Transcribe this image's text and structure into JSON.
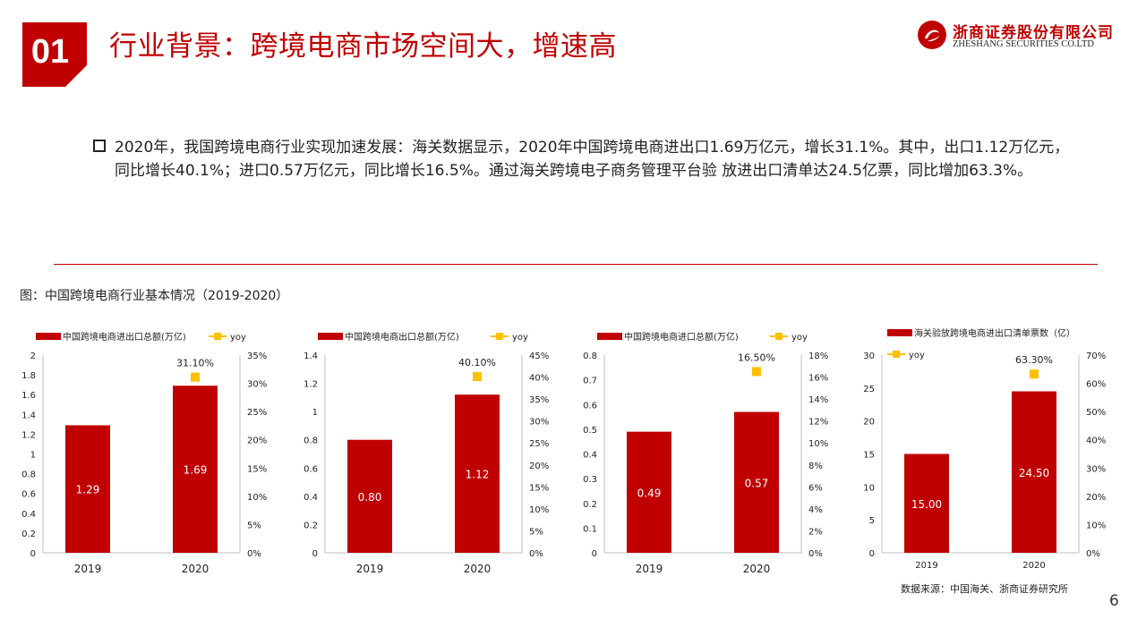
{
  "section_number": "01",
  "title": "行业背景：跨境电商市场空间大，增速高",
  "logo": {
    "name_cn": "浙商证券股份有限公司",
    "name_en": "ZHESHANG SECURITIES CO.LTD",
    "brand_color": "#c00000"
  },
  "bullet_text": "2020年，我国跨境电商行业实现加速发展：海关数据显示，2020年中国跨境电商进出口1.69万亿元，增长31.1%。其中，出口1.12万亿元，同比增长40.1%；进口0.57万亿元，同比增长16.5%。通过海关跨境电子商务管理平台验 放进出口清单达24.5亿票，同比增加63.3%。",
  "figure_caption": "图：中国跨境电商行业基本情况（2019-2020）",
  "source_note": "数据来源：中国海关、浙商证券研究所",
  "page_number": "6",
  "colors": {
    "bar": "#c00000",
    "yoy": "#ffc000",
    "axis": "#bfbfbf"
  },
  "chart_data": [
    {
      "type": "bar",
      "categories": [
        "2019",
        "2020"
      ],
      "series": [
        {
          "name": "中国跨境电商进出口总额(万亿)",
          "values": [
            1.29,
            1.69
          ],
          "labels": [
            "1.29",
            "1.69"
          ]
        },
        {
          "name": "yoy",
          "values": [
            null,
            31.1
          ],
          "labels": [
            "",
            "31.10%"
          ],
          "axis": "right"
        }
      ],
      "y_left": {
        "min": 0,
        "max": 2,
        "ticks": [
          "0",
          "0.2",
          "0.4",
          "0.6",
          "0.8",
          "1",
          "1.2",
          "1.4",
          "1.6",
          "1.8",
          "2"
        ]
      },
      "y_right": {
        "min": 0,
        "max": 35,
        "ticks": [
          "0%",
          "5%",
          "10%",
          "15%",
          "20%",
          "25%",
          "30%",
          "35%"
        ]
      },
      "legend": "top"
    },
    {
      "type": "bar",
      "categories": [
        "2019",
        "2020"
      ],
      "series": [
        {
          "name": "中国跨境电商出口总额(万亿)",
          "values": [
            0.8,
            1.12
          ],
          "labels": [
            "0.80",
            "1.12"
          ]
        },
        {
          "name": "yoy",
          "values": [
            null,
            40.1
          ],
          "labels": [
            "",
            "40.10%"
          ],
          "axis": "right"
        }
      ],
      "y_left": {
        "min": 0,
        "max": 1.4,
        "ticks": [
          "0",
          "0.2",
          "0.4",
          "0.6",
          "0.8",
          "1",
          "1.2",
          "1.4"
        ]
      },
      "y_right": {
        "min": 0,
        "max": 45,
        "ticks": [
          "0%",
          "5%",
          "10%",
          "15%",
          "20%",
          "25%",
          "30%",
          "35%",
          "40%",
          "45%"
        ]
      },
      "legend": "top"
    },
    {
      "type": "bar",
      "categories": [
        "2019",
        "2020"
      ],
      "series": [
        {
          "name": "中国跨境电商进口总额(万亿)",
          "values": [
            0.49,
            0.57
          ],
          "labels": [
            "0.49",
            "0.57"
          ]
        },
        {
          "name": "yoy",
          "values": [
            null,
            16.5
          ],
          "labels": [
            "",
            "16.50%"
          ],
          "axis": "right"
        }
      ],
      "y_left": {
        "min": 0,
        "max": 0.8,
        "ticks": [
          "0",
          "0.1",
          "0.2",
          "0.3",
          "0.4",
          "0.5",
          "0.6",
          "0.7",
          "0.8"
        ]
      },
      "y_right": {
        "min": 0,
        "max": 18,
        "ticks": [
          "0%",
          "2%",
          "4%",
          "6%",
          "8%",
          "10%",
          "12%",
          "14%",
          "16%",
          "18%"
        ]
      },
      "legend": "top"
    },
    {
      "type": "bar",
      "categories": [
        "2019",
        "2020"
      ],
      "series": [
        {
          "name": "海关验放跨境电商进出口清单票数（亿）",
          "values": [
            15.0,
            24.5
          ],
          "labels": [
            "15.00",
            "24.50"
          ]
        },
        {
          "name": "yoy",
          "values": [
            null,
            63.3
          ],
          "labels": [
            "",
            "63.30%"
          ],
          "axis": "right"
        }
      ],
      "y_left": {
        "min": 0,
        "max": 30,
        "ticks": [
          "0",
          "5",
          "10",
          "15",
          "20",
          "25",
          "30"
        ]
      },
      "y_right": {
        "min": 0,
        "max": 70,
        "ticks": [
          "0%",
          "10%",
          "20%",
          "30%",
          "40%",
          "50%",
          "60%",
          "70%"
        ]
      },
      "legend": "top"
    }
  ]
}
